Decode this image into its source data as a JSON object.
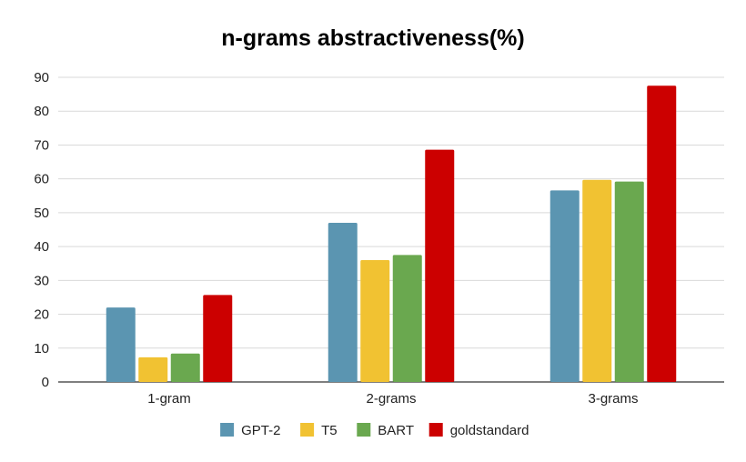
{
  "chart_data": {
    "type": "bar",
    "title": "n-grams abstractiveness(%)",
    "xlabel": "",
    "ylabel": "",
    "categories": [
      "1-gram",
      "2-grams",
      "3-grams"
    ],
    "series": [
      {
        "name": "GPT-2",
        "color": "#5b95b1",
        "values": [
          22,
          47,
          56.6
        ]
      },
      {
        "name": "T5",
        "color": "#f1c232",
        "values": [
          7.3,
          36,
          59.7
        ]
      },
      {
        "name": "BART",
        "color": "#6aa84f",
        "values": [
          8.4,
          37.5,
          59.2
        ]
      },
      {
        "name": "goldstandard",
        "color": "#cc0000",
        "values": [
          25.7,
          68.6,
          87.5
        ]
      }
    ],
    "ylim": [
      0,
      90
    ],
    "yticks": [
      0,
      10,
      20,
      30,
      40,
      50,
      60,
      70,
      80,
      90
    ],
    "grid": true,
    "legend": "bottom"
  }
}
